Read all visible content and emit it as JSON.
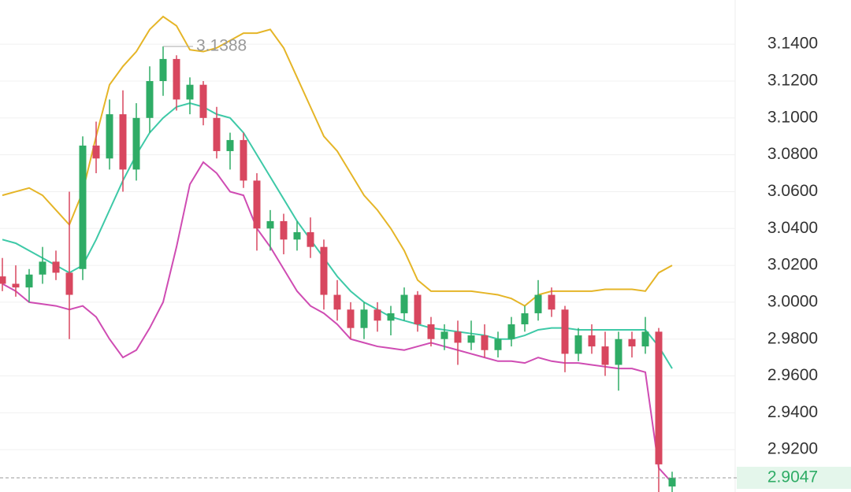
{
  "chart_data": {
    "type": "candlestick",
    "categories": [
      null,
      null,
      null,
      null,
      null,
      null,
      null,
      null,
      null,
      null,
      null,
      null,
      null,
      null,
      null,
      null,
      null,
      null,
      null,
      null,
      null,
      null,
      null,
      null,
      null,
      null,
      null,
      null,
      null,
      null,
      null,
      null,
      null,
      null,
      null,
      null,
      null,
      null,
      null,
      null,
      null,
      null,
      null,
      null,
      null,
      null,
      null,
      null,
      null,
      null,
      null
    ],
    "open": [
      3.014,
      3.01,
      3.008,
      3.015,
      3.022,
      3.016,
      3.018,
      3.085,
      3.078,
      3.102,
      3.072,
      3.1,
      3.12,
      3.132,
      3.11,
      3.118,
      3.1,
      3.082,
      3.088,
      3.066,
      3.04,
      3.044,
      3.034,
      3.038,
      3.03,
      3.004,
      2.996,
      2.986,
      2.996,
      2.99,
      2.994,
      3.004,
      2.988,
      2.98,
      2.984,
      2.978,
      2.982,
      2.974,
      2.98,
      2.988,
      2.994,
      3.004,
      2.996,
      2.972,
      2.982,
      2.976,
      2.966,
      2.98,
      2.976,
      2.984,
      2.9
    ],
    "high": [
      3.024,
      3.02,
      3.018,
      3.03,
      3.028,
      3.06,
      3.09,
      3.098,
      3.11,
      3.115,
      3.108,
      3.128,
      3.1388,
      3.134,
      3.122,
      3.12,
      3.106,
      3.092,
      3.092,
      3.07,
      3.05,
      3.048,
      3.044,
      3.046,
      3.034,
      3.012,
      3.0,
      3.0,
      3.0,
      2.998,
      3.008,
      3.006,
      2.992,
      2.988,
      2.99,
      2.99,
      2.988,
      2.984,
      2.992,
      2.998,
      3.012,
      3.008,
      2.998,
      2.986,
      2.988,
      2.984,
      2.984,
      2.984,
      2.992,
      2.986,
      2.908
    ],
    "low": [
      3.006,
      3.003,
      3.0,
      3.01,
      3.012,
      2.98,
      3.012,
      3.07,
      3.072,
      3.06,
      3.066,
      3.092,
      3.112,
      3.104,
      3.102,
      3.096,
      3.078,
      3.072,
      3.062,
      3.028,
      3.028,
      3.026,
      3.028,
      3.024,
      2.996,
      2.99,
      2.98,
      2.98,
      2.984,
      2.982,
      2.99,
      2.984,
      2.976,
      2.974,
      2.966,
      2.974,
      2.97,
      2.97,
      2.976,
      2.984,
      2.99,
      2.992,
      2.962,
      2.968,
      2.972,
      2.96,
      2.952,
      2.97,
      2.972,
      2.896,
      2.897
    ],
    "close": [
      3.01,
      3.008,
      3.015,
      3.022,
      3.016,
      3.004,
      3.085,
      3.078,
      3.102,
      3.072,
      3.1,
      3.12,
      3.132,
      3.11,
      3.118,
      3.1,
      3.082,
      3.088,
      3.066,
      3.04,
      3.044,
      3.034,
      3.038,
      3.03,
      3.004,
      2.996,
      2.986,
      2.996,
      2.99,
      2.994,
      3.004,
      2.988,
      2.98,
      2.984,
      2.978,
      2.982,
      2.974,
      2.98,
      2.988,
      2.994,
      3.004,
      2.996,
      2.972,
      2.982,
      2.976,
      2.966,
      2.98,
      2.976,
      2.984,
      2.912,
      2.9047
    ],
    "up_color": "#2fac66",
    "down_color": "#d8475f",
    "series": [
      {
        "color": "#e5b527",
        "values": [
          3.058,
          3.06,
          3.062,
          3.058,
          3.05,
          3.042,
          3.06,
          3.09,
          3.118,
          3.128,
          3.136,
          3.148,
          3.155,
          3.15,
          3.137,
          3.136,
          3.138,
          3.142,
          3.146,
          3.146,
          3.148,
          3.138,
          3.122,
          3.106,
          3.09,
          3.082,
          3.07,
          3.058,
          3.05,
          3.04,
          3.028,
          3.012,
          3.006,
          3.006,
          3.006,
          3.006,
          3.005,
          3.004,
          3.002,
          2.998,
          3.004,
          3.006,
          3.006,
          3.006,
          3.006,
          3.007,
          3.007,
          3.007,
          3.006,
          3.016,
          3.02
        ]
      },
      {
        "color": "#3ec9a7",
        "values": [
          3.034,
          3.032,
          3.028,
          3.024,
          3.02,
          3.016,
          3.02,
          3.034,
          3.05,
          3.066,
          3.08,
          3.092,
          3.1,
          3.106,
          3.108,
          3.106,
          3.102,
          3.1,
          3.092,
          3.08,
          3.068,
          3.056,
          3.044,
          3.034,
          3.024,
          3.014,
          3.006,
          3.0,
          2.996,
          2.992,
          2.99,
          2.988,
          2.986,
          2.985,
          2.984,
          2.983,
          2.982,
          2.98,
          2.98,
          2.982,
          2.985,
          2.986,
          2.986,
          2.985,
          2.985,
          2.985,
          2.985,
          2.985,
          2.985,
          2.976,
          2.964
        ]
      },
      {
        "color": "#cf4cb3",
        "values": [
          3.01,
          3.006,
          3.0,
          2.999,
          2.998,
          2.996,
          2.998,
          2.992,
          2.98,
          2.97,
          2.974,
          2.986,
          3.0,
          3.03,
          3.064,
          3.076,
          3.07,
          3.06,
          3.058,
          3.04,
          3.03,
          3.018,
          3.006,
          2.998,
          2.994,
          2.988,
          2.98,
          2.978,
          2.976,
          2.975,
          2.974,
          2.976,
          2.978,
          2.976,
          2.974,
          2.972,
          2.97,
          2.968,
          2.968,
          2.967,
          2.97,
          2.968,
          2.967,
          2.967,
          2.966,
          2.965,
          2.964,
          2.964,
          2.962,
          2.91,
          2.902
        ]
      }
    ],
    "ylim": [
      2.897,
      3.164
    ],
    "yticks": [
      {
        "value": 2.92,
        "label": "2.9200"
      },
      {
        "value": 2.94,
        "label": "2.9400"
      },
      {
        "value": 2.96,
        "label": "2.9600"
      },
      {
        "value": 2.98,
        "label": "2.9800"
      },
      {
        "value": 3.0,
        "label": "3.0000"
      },
      {
        "value": 3.02,
        "label": "3.0200"
      },
      {
        "value": 3.04,
        "label": "3.0400"
      },
      {
        "value": 3.06,
        "label": "3.0600"
      },
      {
        "value": 3.08,
        "label": "3.0800"
      },
      {
        "value": 3.1,
        "label": "3.1000"
      },
      {
        "value": 3.12,
        "label": "3.1200"
      },
      {
        "value": 3.14,
        "label": "3.1400"
      }
    ],
    "grid": true,
    "max_label": 3.1388,
    "last_price": 2.9047
  }
}
